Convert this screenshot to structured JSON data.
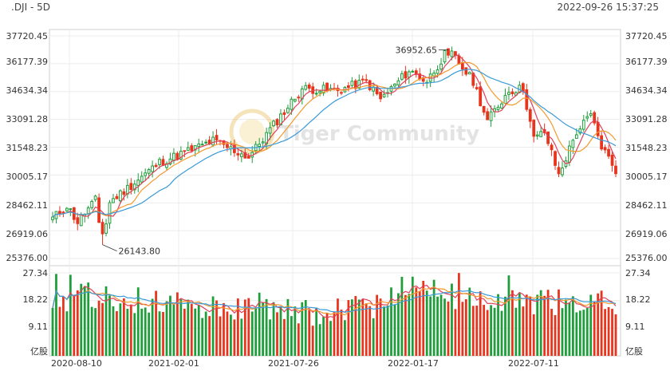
{
  "header": {
    "symbol": ".DJI - 5D",
    "timestamp": "2022-09-26 15:37:25"
  },
  "watermark": "Tiger Community",
  "price_axis": {
    "labels": [
      "37720.45",
      "36177.39",
      "34634.34",
      "33091.28",
      "31548.23",
      "30005.17",
      "28462.11",
      "26919.06",
      "25376.00"
    ]
  },
  "volume_axis": {
    "labels": [
      "27.34",
      "18.22",
      "9.11",
      "亿股"
    ]
  },
  "time_axis": {
    "labels": [
      "2020-08-10",
      "2021-02-01",
      "2021-07-26",
      "2022-01-17",
      "2022-07-11"
    ]
  },
  "annotations": {
    "high": "36952.65",
    "low": "26143.80"
  },
  "colors": {
    "up": "#1e9e3a",
    "down": "#e8341c",
    "ma_short": "#e0405a",
    "ma_mid": "#f29a2e",
    "ma_long": "#3a9ad9"
  },
  "chart_data": {
    "type": "candlestick",
    "title": "",
    "interval": "5D",
    "price_range": [
      25376.0,
      37720.45
    ],
    "volume_range_100m_shares": [
      0,
      27.34
    ],
    "price_path_anchors": [
      [
        0,
        27600
      ],
      [
        4,
        28300
      ],
      [
        7,
        27400
      ],
      [
        12,
        28600
      ],
      [
        14,
        26143.8
      ],
      [
        16,
        28500
      ],
      [
        30,
        30700
      ],
      [
        45,
        31900
      ],
      [
        55,
        31000
      ],
      [
        70,
        34800
      ],
      [
        80,
        34700
      ],
      [
        88,
        35200
      ],
      [
        92,
        34200
      ],
      [
        100,
        35800
      ],
      [
        105,
        35200
      ],
      [
        111,
        36952.65
      ],
      [
        118,
        35200
      ],
      [
        122,
        33000
      ],
      [
        128,
        34700
      ],
      [
        132,
        34800
      ],
      [
        135,
        32000
      ],
      [
        138,
        32400
      ],
      [
        142,
        30000
      ],
      [
        147,
        32400
      ],
      [
        151,
        33300
      ],
      [
        154,
        31600
      ],
      [
        158,
        30300
      ]
    ],
    "volume_anchors": [
      [
        0,
        18
      ],
      [
        10,
        20
      ],
      [
        20,
        18
      ],
      [
        30,
        19
      ],
      [
        40,
        17
      ],
      [
        50,
        16
      ],
      [
        60,
        16.5
      ],
      [
        70,
        14
      ],
      [
        80,
        15
      ],
      [
        90,
        16
      ],
      [
        100,
        22
      ],
      [
        105,
        24
      ],
      [
        110,
        20
      ],
      [
        120,
        19
      ],
      [
        130,
        18
      ],
      [
        140,
        18
      ],
      [
        150,
        17
      ],
      [
        158,
        18
      ]
    ],
    "series": [
      {
        "name": "",
        "type": "ma",
        "color_key": "ma_short"
      },
      {
        "name": "",
        "type": "ma",
        "color_key": "ma_mid"
      },
      {
        "name": "",
        "type": "ma",
        "color_key": "ma_long"
      }
    ]
  }
}
